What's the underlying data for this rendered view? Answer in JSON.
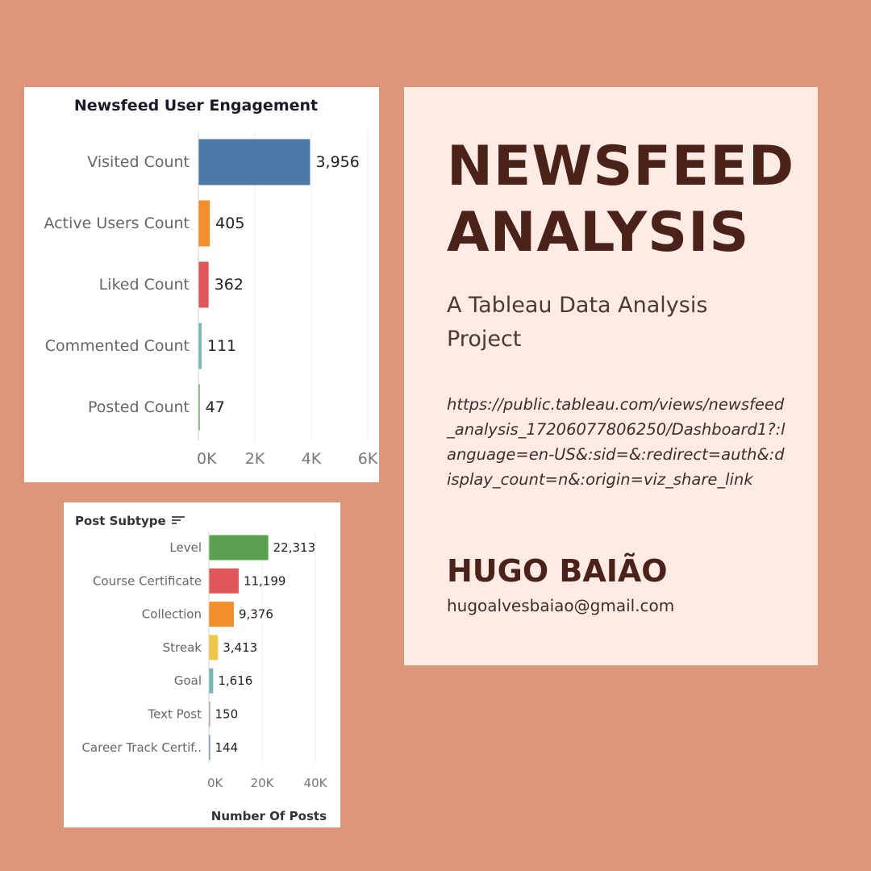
{
  "chart_data": [
    {
      "type": "bar",
      "orientation": "horizontal",
      "title": "Newsfeed User Engagement",
      "categories": [
        "Visited Count",
        "Active Users Count",
        "Liked Count",
        "Commented Count",
        "Posted Count"
      ],
      "values": [
        3956,
        405,
        362,
        111,
        47
      ],
      "value_labels": [
        "3,956",
        "405",
        "362",
        "111",
        "47"
      ],
      "colors": [
        "#4e79a7",
        "#f28e2b",
        "#e15759",
        "#76b7b2",
        "#59a14f"
      ],
      "xlim": [
        0,
        6000
      ],
      "xticks": [
        0,
        2000,
        4000,
        6000
      ],
      "xtick_labels": [
        "0K",
        "2K",
        "4K",
        "6K"
      ],
      "grid": true
    },
    {
      "type": "bar",
      "orientation": "horizontal",
      "title": "Post Subtype",
      "xlabel": "Number Of Posts",
      "categories": [
        "Level",
        "Course Certificate",
        "Collection",
        "Streak",
        "Goal",
        "Text Post",
        "Career Track Certif.."
      ],
      "values": [
        22313,
        11199,
        9376,
        3413,
        1616,
        150,
        144
      ],
      "value_labels": [
        "22,313",
        "11,199",
        "9,376",
        "3,413",
        "1,616",
        "150",
        "144"
      ],
      "colors": [
        "#59a14f",
        "#e15759",
        "#f28e2b",
        "#edc948",
        "#76b7b2",
        "#b07aa1",
        "#4e79a7"
      ],
      "xlim": [
        0,
        40000
      ],
      "xticks": [
        0,
        20000,
        40000
      ],
      "xtick_labels": [
        "0K",
        "20K",
        "40K"
      ],
      "grid": true,
      "sort_icon": "sort-descending-icon"
    }
  ],
  "card": {
    "title_line1": "NEWSFEED",
    "title_line2": "ANALYSIS",
    "subtitle": "A Tableau Data Analysis Project",
    "url": "https://public.tableau.com/views/newsfeed_analysis_17206077806250/Dashboard1?:language=en-US&:sid=&:redirect=auth&:display_count=n&:origin=viz_share_link",
    "author": "HUGO BAIÃO",
    "email": "hugoalvesbaiao@gmail.com"
  }
}
